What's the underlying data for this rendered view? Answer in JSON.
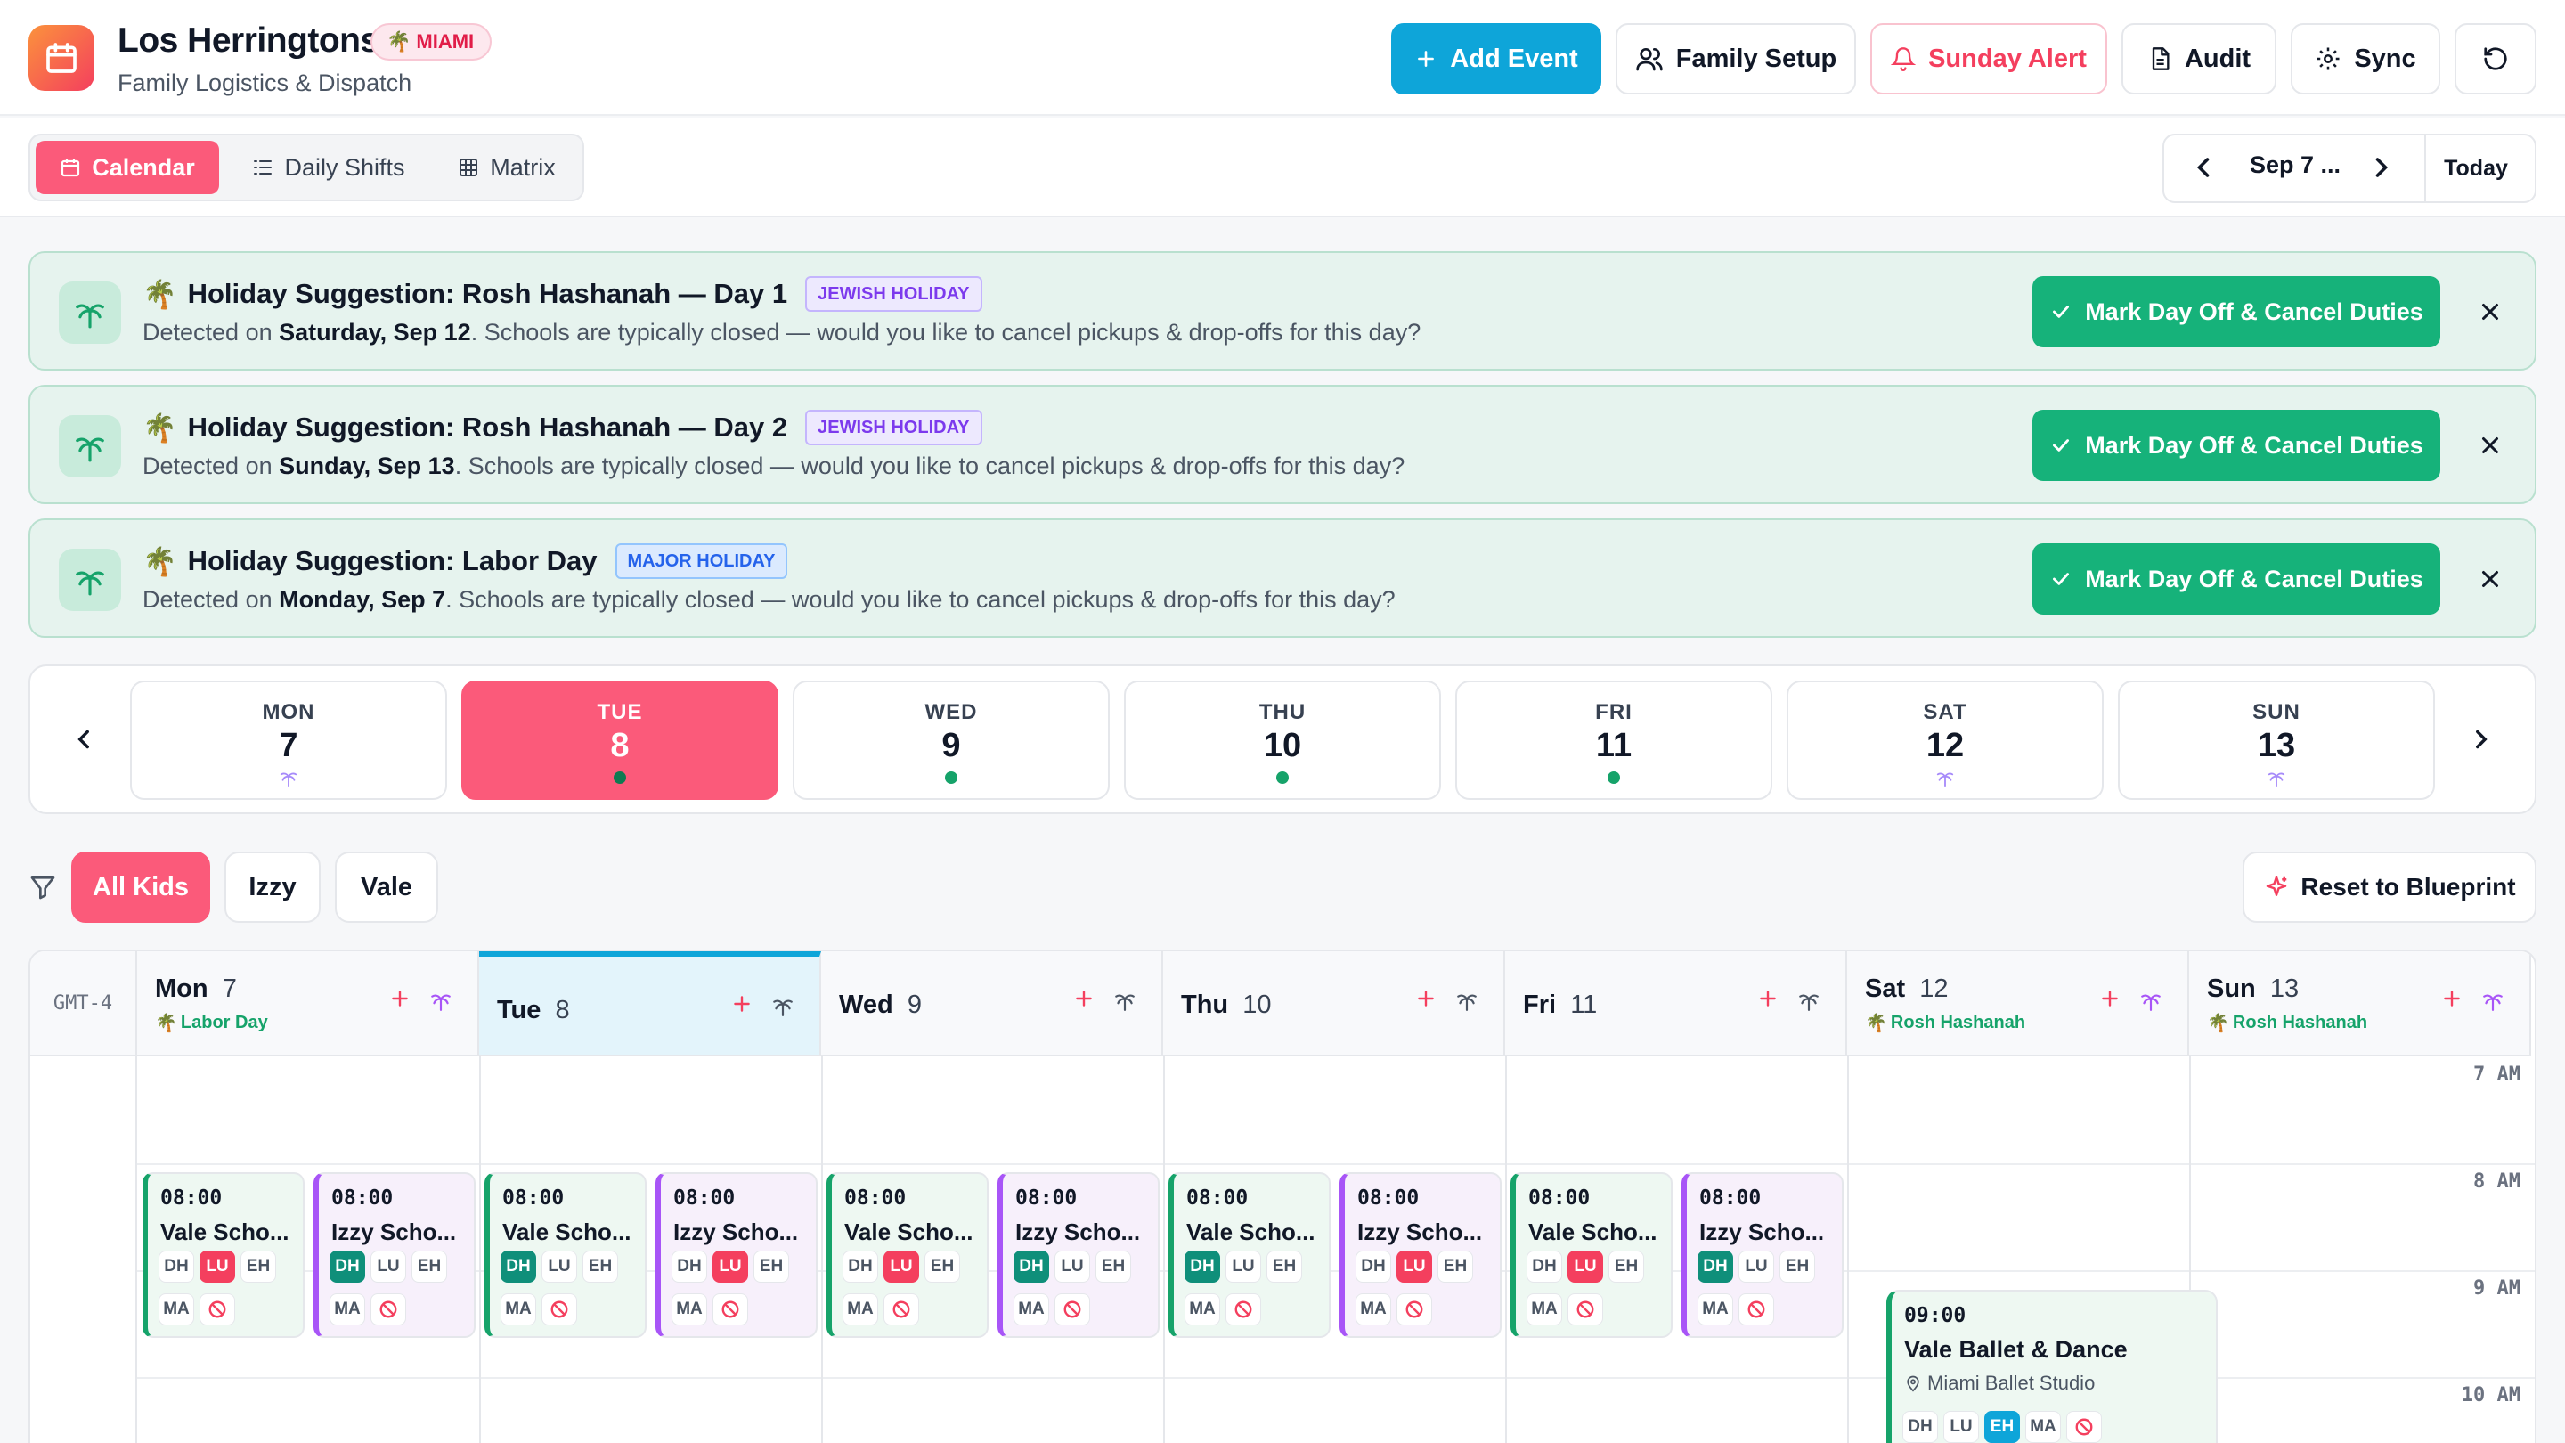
{
  "header": {
    "title": "Los Herringtons",
    "city_badge": "MIAMI",
    "subtitle": "Family Logistics & Dispatch",
    "buttons": {
      "add_event": "Add Event",
      "family_setup": "Family Setup",
      "sunday_alert": "Sunday Alert",
      "audit": "Audit",
      "sync": "Sync"
    }
  },
  "nav": {
    "tabs": [
      "Calendar",
      "Daily Shifts",
      "Matrix"
    ],
    "date_label": "Sep 7 ...",
    "today": "Today"
  },
  "suggestions": [
    {
      "title": "Holiday Suggestion: Rosh Hashanah — Day 1",
      "tag": "JEWISH HOLIDAY",
      "desc_pre": "Detected on ",
      "date": "Saturday, Sep 12",
      "desc_post": ". Schools are typically closed — would you like to cancel pickups & drop-offs for this day?",
      "action": "Mark Day Off & Cancel Duties"
    },
    {
      "title": "Holiday Suggestion: Rosh Hashanah — Day 2",
      "tag": "JEWISH HOLIDAY",
      "desc_pre": "Detected on ",
      "date": "Sunday, Sep 13",
      "desc_post": ". Schools are typically closed — would you like to cancel pickups & drop-offs for this day?",
      "action": "Mark Day Off & Cancel Duties"
    },
    {
      "title": "Holiday Suggestion: Labor Day",
      "tag": "MAJOR HOLIDAY",
      "desc_pre": "Detected on ",
      "date": "Monday, Sep 7",
      "desc_post": ". Schools are typically closed — would you like to cancel pickups & drop-offs for this day?",
      "action": "Mark Day Off & Cancel Duties"
    }
  ],
  "week": [
    {
      "name": "MON",
      "num": "7"
    },
    {
      "name": "TUE",
      "num": "8"
    },
    {
      "name": "WED",
      "num": "9"
    },
    {
      "name": "THU",
      "num": "10"
    },
    {
      "name": "FRI",
      "num": "11"
    },
    {
      "name": "SAT",
      "num": "12"
    },
    {
      "name": "SUN",
      "num": "13"
    }
  ],
  "filters": {
    "chips": [
      "All Kids",
      "Izzy",
      "Vale"
    ],
    "reset": "Reset to Blueprint"
  },
  "calendar": {
    "timezone": "GMT-4",
    "columns": [
      {
        "day": "Mon",
        "num": "7",
        "holiday": "Labor Day"
      },
      {
        "day": "Tue",
        "num": "8",
        "holiday": ""
      },
      {
        "day": "Wed",
        "num": "9",
        "holiday": ""
      },
      {
        "day": "Thu",
        "num": "10",
        "holiday": ""
      },
      {
        "day": "Fri",
        "num": "11",
        "holiday": ""
      },
      {
        "day": "Sat",
        "num": "12",
        "holiday": "Rosh Hashanah"
      },
      {
        "day": "Sun",
        "num": "13",
        "holiday": "Rosh Hashanah"
      }
    ],
    "hours": [
      "7 AM",
      "8 AM",
      "9 AM",
      "10 AM"
    ],
    "school_time": "08:00",
    "vale_title": "Vale Scho...",
    "izzy_title": "Izzy Scho...",
    "roles": [
      "DH",
      "LU",
      "EH",
      "MA"
    ],
    "ballet": {
      "time": "09:00",
      "title": "Vale Ballet & Dance",
      "location": "Miami Ballet Studio"
    }
  },
  "colors": {
    "accent": "#fb5a7a",
    "primary": "#0ea5d9",
    "success": "#16b27a"
  }
}
